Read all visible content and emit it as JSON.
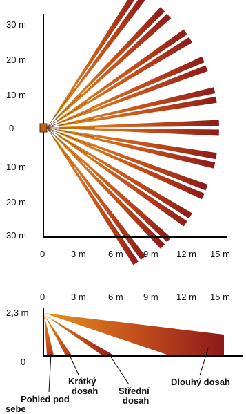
{
  "top_view": {
    "y_ticks": [
      "30 m",
      "20 m",
      "10 m",
      "0",
      "10 m",
      "20 m",
      "30 m"
    ],
    "x_ticks": [
      "0",
      "3 m",
      "6 m",
      "9 m",
      "12 m",
      "15 m"
    ],
    "beam_count": 11,
    "max_range_m": 15
  },
  "side_view": {
    "x_ticks": [
      "0",
      "3 m",
      "6 m",
      "9 m",
      "12 m",
      "15 m"
    ],
    "y_ticks": [
      "2,3 m",
      "0"
    ],
    "annotations": {
      "under": "Pohled pod sebe",
      "short": "Krátký dosah",
      "medium": "Střední dosah",
      "long": "Dlouhý dosah"
    }
  },
  "colors": {
    "beam_dark": "#8c1a1a",
    "beam_mid": "#c4501c",
    "beam_light": "#e8921c",
    "axis": "#000000",
    "sensor": "#b5651d"
  }
}
